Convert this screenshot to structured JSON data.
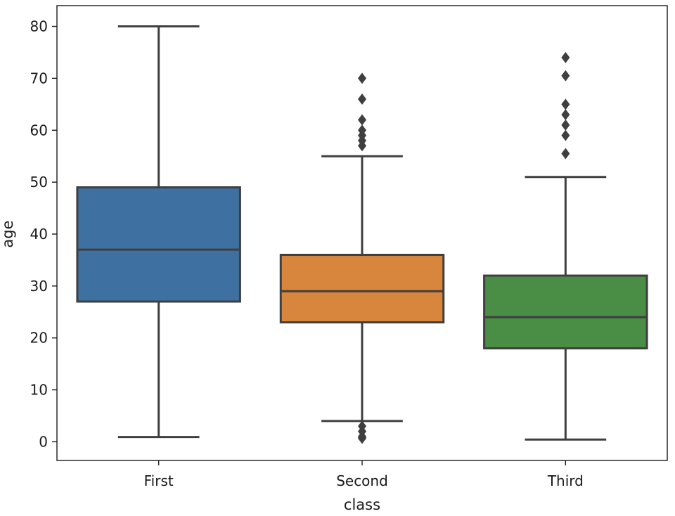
{
  "chart_data": {
    "type": "box",
    "xlabel": "class",
    "ylabel": "age",
    "ylim": [
      -3.6,
      84.0
    ],
    "yticks": [
      0,
      10,
      20,
      30,
      40,
      50,
      60,
      70,
      80
    ],
    "grid": false,
    "line_color": "#3f3f3f",
    "categories": [
      "First",
      "Second",
      "Third"
    ],
    "boxes": [
      {
        "category": "First",
        "color": "#3e71a1",
        "whisker_low": 0.92,
        "q1": 27.0,
        "median": 37.0,
        "q3": 49.0,
        "whisker_high": 80.0,
        "outliers": []
      },
      {
        "category": "Second",
        "color": "#d8853d",
        "whisker_low": 4.0,
        "q1": 23.0,
        "median": 29.0,
        "q3": 36.0,
        "whisker_high": 55.0,
        "outliers": [
          0.67,
          0.83,
          1.0,
          2.0,
          3.0,
          57.0,
          58.0,
          59.0,
          60.0,
          62.0,
          66.0,
          70.0
        ]
      },
      {
        "category": "Third",
        "color": "#4a8d44",
        "whisker_low": 0.42,
        "q1": 18.0,
        "median": 24.0,
        "q3": 32.0,
        "whisker_high": 51.0,
        "outliers": [
          55.5,
          59.0,
          61.0,
          63.0,
          65.0,
          70.5,
          74.0
        ]
      }
    ]
  }
}
